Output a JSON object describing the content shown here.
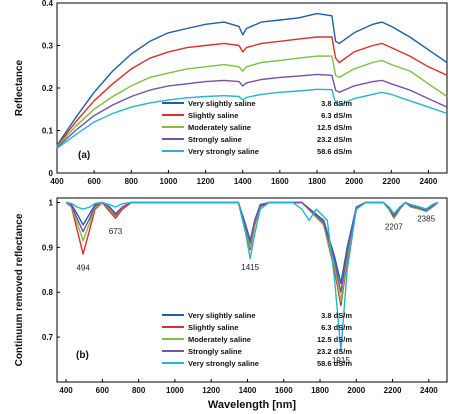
{
  "figure": {
    "shared_xlabel": "Wavelength [nm]"
  },
  "chart_data": [
    {
      "type": "line",
      "panel_label": "(a)",
      "xlabel": "",
      "ylabel": "Reflectance",
      "xlim": [
        400,
        2500
      ],
      "ylim": [
        0,
        0.4
      ],
      "xticks": [
        400,
        600,
        800,
        1000,
        1200,
        1400,
        1600,
        1800,
        2000,
        2200,
        2400
      ],
      "yticks": [
        0,
        0.1,
        0.2,
        0.3,
        0.4
      ],
      "ytick_labels": [
        "0",
        "0.1",
        "0.2",
        "0.3",
        "0.4"
      ],
      "legend_position": "bottom-center",
      "series": [
        {
          "name": "Very slightly saline",
          "value_label": "3.8 dS/m",
          "color": "#1f5fa8",
          "x": [
            400,
            500,
            600,
            700,
            800,
            900,
            1000,
            1100,
            1200,
            1300,
            1380,
            1400,
            1420,
            1500,
            1600,
            1700,
            1800,
            1880,
            1900,
            1920,
            2000,
            2100,
            2150,
            2200,
            2300,
            2400,
            2500
          ],
          "y": [
            0.065,
            0.13,
            0.19,
            0.24,
            0.28,
            0.31,
            0.33,
            0.34,
            0.35,
            0.355,
            0.345,
            0.325,
            0.34,
            0.355,
            0.36,
            0.365,
            0.375,
            0.37,
            0.31,
            0.305,
            0.33,
            0.35,
            0.355,
            0.345,
            0.32,
            0.29,
            0.26
          ]
        },
        {
          "name": "Slightly saline",
          "value_label": "6.3 dS/m",
          "color": "#d9312a",
          "x": [
            400,
            500,
            600,
            700,
            800,
            900,
            1000,
            1100,
            1200,
            1300,
            1380,
            1400,
            1420,
            1500,
            1600,
            1700,
            1800,
            1880,
            1900,
            1920,
            2000,
            2100,
            2150,
            2200,
            2300,
            2400,
            2500
          ],
          "y": [
            0.063,
            0.12,
            0.17,
            0.21,
            0.245,
            0.27,
            0.285,
            0.295,
            0.3,
            0.305,
            0.3,
            0.285,
            0.295,
            0.305,
            0.31,
            0.315,
            0.32,
            0.32,
            0.27,
            0.26,
            0.285,
            0.3,
            0.305,
            0.295,
            0.275,
            0.25,
            0.23
          ]
        },
        {
          "name": "Moderately saline",
          "value_label": "12.5 dS/m",
          "color": "#7fbf3f",
          "x": [
            400,
            500,
            600,
            700,
            800,
            900,
            1000,
            1100,
            1200,
            1300,
            1380,
            1400,
            1420,
            1500,
            1600,
            1700,
            1800,
            1880,
            1900,
            1920,
            2000,
            2100,
            2150,
            2200,
            2300,
            2400,
            2500
          ],
          "y": [
            0.062,
            0.11,
            0.15,
            0.18,
            0.205,
            0.225,
            0.235,
            0.245,
            0.25,
            0.255,
            0.25,
            0.24,
            0.25,
            0.26,
            0.265,
            0.27,
            0.275,
            0.275,
            0.23,
            0.225,
            0.245,
            0.26,
            0.265,
            0.255,
            0.24,
            0.21,
            0.18
          ]
        },
        {
          "name": "Strongly saline",
          "value_label": "23.2 dS/m",
          "color": "#7a4fa8",
          "x": [
            400,
            500,
            600,
            700,
            800,
            900,
            1000,
            1100,
            1200,
            1300,
            1380,
            1400,
            1420,
            1500,
            1600,
            1700,
            1800,
            1880,
            1900,
            1920,
            2000,
            2100,
            2150,
            2200,
            2300,
            2400,
            2500
          ],
          "y": [
            0.06,
            0.1,
            0.135,
            0.16,
            0.18,
            0.195,
            0.205,
            0.21,
            0.215,
            0.218,
            0.215,
            0.205,
            0.212,
            0.22,
            0.225,
            0.228,
            0.232,
            0.23,
            0.195,
            0.19,
            0.205,
            0.215,
            0.218,
            0.21,
            0.195,
            0.175,
            0.155
          ]
        },
        {
          "name": "Very strongly saline",
          "value_label": "58.6 dS/m",
          "color": "#24b5cf",
          "x": [
            400,
            500,
            600,
            700,
            800,
            900,
            1000,
            1100,
            1200,
            1300,
            1380,
            1400,
            1420,
            1500,
            1600,
            1700,
            1800,
            1880,
            1900,
            1920,
            2000,
            2100,
            2150,
            2200,
            2300,
            2400,
            2500
          ],
          "y": [
            0.058,
            0.09,
            0.12,
            0.14,
            0.155,
            0.165,
            0.172,
            0.177,
            0.18,
            0.182,
            0.18,
            0.172,
            0.178,
            0.185,
            0.19,
            0.193,
            0.197,
            0.196,
            0.165,
            0.16,
            0.175,
            0.185,
            0.19,
            0.185,
            0.17,
            0.155,
            0.14
          ]
        }
      ]
    },
    {
      "type": "line",
      "panel_label": "(b)",
      "xlabel": "Wavelength [nm]",
      "ylabel": "Continuum removed reflectance",
      "xlim": [
        350,
        2500
      ],
      "ylim": [
        0.6,
        1.01
      ],
      "xticks": [
        400,
        600,
        800,
        1000,
        1200,
        1400,
        1600,
        1800,
        2000,
        2200,
        2400
      ],
      "yticks": [
        0.7,
        0.8,
        0.9,
        1
      ],
      "ytick_labels": [
        "0.7",
        "0.8",
        "0.9",
        "1"
      ],
      "legend_position": "bottom-center",
      "annotations": [
        {
          "text": "494",
          "x": 494,
          "y": 0.868
        },
        {
          "text": "673",
          "x": 673,
          "y": 0.95
        },
        {
          "text": "1415",
          "x": 1415,
          "y": 0.87
        },
        {
          "text": "1915",
          "x": 1915,
          "y": 0.662
        },
        {
          "text": "2207",
          "x": 2207,
          "y": 0.96
        },
        {
          "text": "2385",
          "x": 2385,
          "y": 0.978
        }
      ],
      "series": [
        {
          "name": "Very slightly saline",
          "value_label": "3.8 dS/m",
          "color": "#1f5fa8",
          "x": [
            400,
            430,
            460,
            494,
            530,
            560,
            600,
            640,
            673,
            710,
            760,
            1000,
            1350,
            1390,
            1415,
            1440,
            1470,
            1520,
            1700,
            1820,
            1880,
            1915,
            1950,
            2000,
            2050,
            2150,
            2180,
            2207,
            2240,
            2270,
            2300,
            2350,
            2385,
            2420,
            2450
          ],
          "y": [
            1,
            0.995,
            0.975,
            0.95,
            0.975,
            0.995,
            1,
            0.99,
            0.975,
            0.99,
            1,
            1,
            1,
            0.95,
            0.915,
            0.96,
            0.995,
            1,
            1,
            0.96,
            0.88,
            0.82,
            0.9,
            0.99,
            1,
            1,
            0.99,
            0.97,
            0.99,
            1,
            0.995,
            0.99,
            0.985,
            0.995,
            1
          ]
        },
        {
          "name": "Slightly saline",
          "value_label": "6.3 dS/m",
          "color": "#d9312a",
          "x": [
            400,
            430,
            460,
            494,
            530,
            560,
            600,
            640,
            673,
            710,
            760,
            1000,
            1350,
            1390,
            1415,
            1440,
            1470,
            1520,
            1700,
            1820,
            1880,
            1915,
            1950,
            2000,
            2050,
            2150,
            2180,
            2207,
            2240,
            2270,
            2300,
            2350,
            2385,
            2420,
            2450
          ],
          "y": [
            1,
            0.99,
            0.94,
            0.885,
            0.94,
            0.985,
            1,
            0.98,
            0.965,
            0.985,
            1,
            1,
            1,
            0.935,
            0.895,
            0.95,
            0.99,
            1,
            1,
            0.95,
            0.85,
            0.77,
            0.87,
            0.985,
            1,
            1,
            0.985,
            0.965,
            0.985,
            1,
            0.99,
            0.985,
            0.98,
            0.99,
            1
          ]
        },
        {
          "name": "Moderately saline",
          "value_label": "12.5 dS/m",
          "color": "#7fbf3f",
          "x": [
            400,
            430,
            460,
            494,
            530,
            560,
            600,
            640,
            673,
            710,
            760,
            1000,
            1350,
            1390,
            1415,
            1440,
            1470,
            1520,
            1700,
            1820,
            1880,
            1915,
            1950,
            2000,
            2050,
            2150,
            2180,
            2207,
            2240,
            2270,
            2300,
            2350,
            2385,
            2420,
            2450
          ],
          "y": [
            1,
            0.99,
            0.955,
            0.915,
            0.955,
            0.99,
            1,
            0.985,
            0.97,
            0.99,
            1,
            1,
            1,
            0.94,
            0.9,
            0.955,
            0.99,
            1,
            1,
            0.95,
            0.86,
            0.78,
            0.88,
            0.985,
            1,
            1,
            0.985,
            0.965,
            0.985,
            1,
            0.99,
            0.985,
            0.98,
            0.99,
            1
          ]
        },
        {
          "name": "Strongly saline",
          "value_label": "23.2 dS/m",
          "color": "#7a4fa8",
          "x": [
            400,
            430,
            460,
            494,
            530,
            560,
            600,
            640,
            673,
            710,
            760,
            1000,
            1350,
            1390,
            1415,
            1440,
            1470,
            1520,
            1700,
            1820,
            1880,
            1915,
            1950,
            2000,
            2050,
            2150,
            2180,
            2207,
            2240,
            2270,
            2300,
            2350,
            2385,
            2420,
            2450
          ],
          "y": [
            1,
            0.993,
            0.965,
            0.935,
            0.965,
            0.993,
            1,
            0.988,
            0.972,
            0.99,
            1,
            1,
            1,
            0.945,
            0.91,
            0.958,
            0.992,
            1,
            1,
            0.955,
            0.87,
            0.8,
            0.89,
            0.988,
            1,
            1,
            0.987,
            0.968,
            0.987,
            1,
            0.992,
            0.987,
            0.982,
            0.992,
            1
          ]
        },
        {
          "name": "Very strongly saline",
          "value_label": "58.6 dS/m",
          "color": "#24b5cf",
          "x": [
            400,
            430,
            460,
            494,
            530,
            560,
            600,
            640,
            673,
            710,
            760,
            1000,
            1350,
            1390,
            1415,
            1440,
            1470,
            1520,
            1650,
            1700,
            1740,
            1780,
            1840,
            1880,
            1915,
            1950,
            2000,
            2050,
            2150,
            2180,
            2207,
            2240,
            2270,
            2300,
            2350,
            2385,
            2420,
            2450
          ],
          "y": [
            1,
            0.998,
            0.99,
            0.985,
            0.99,
            0.998,
            1,
            0.995,
            0.99,
            0.997,
            1,
            1,
            1,
            0.93,
            0.875,
            0.93,
            0.985,
            1,
            1,
            0.985,
            0.96,
            0.985,
            0.96,
            0.83,
            0.67,
            0.85,
            0.985,
            1,
            1,
            0.99,
            0.975,
            0.99,
            1,
            0.995,
            0.99,
            0.985,
            0.995,
            1
          ]
        }
      ]
    }
  ]
}
